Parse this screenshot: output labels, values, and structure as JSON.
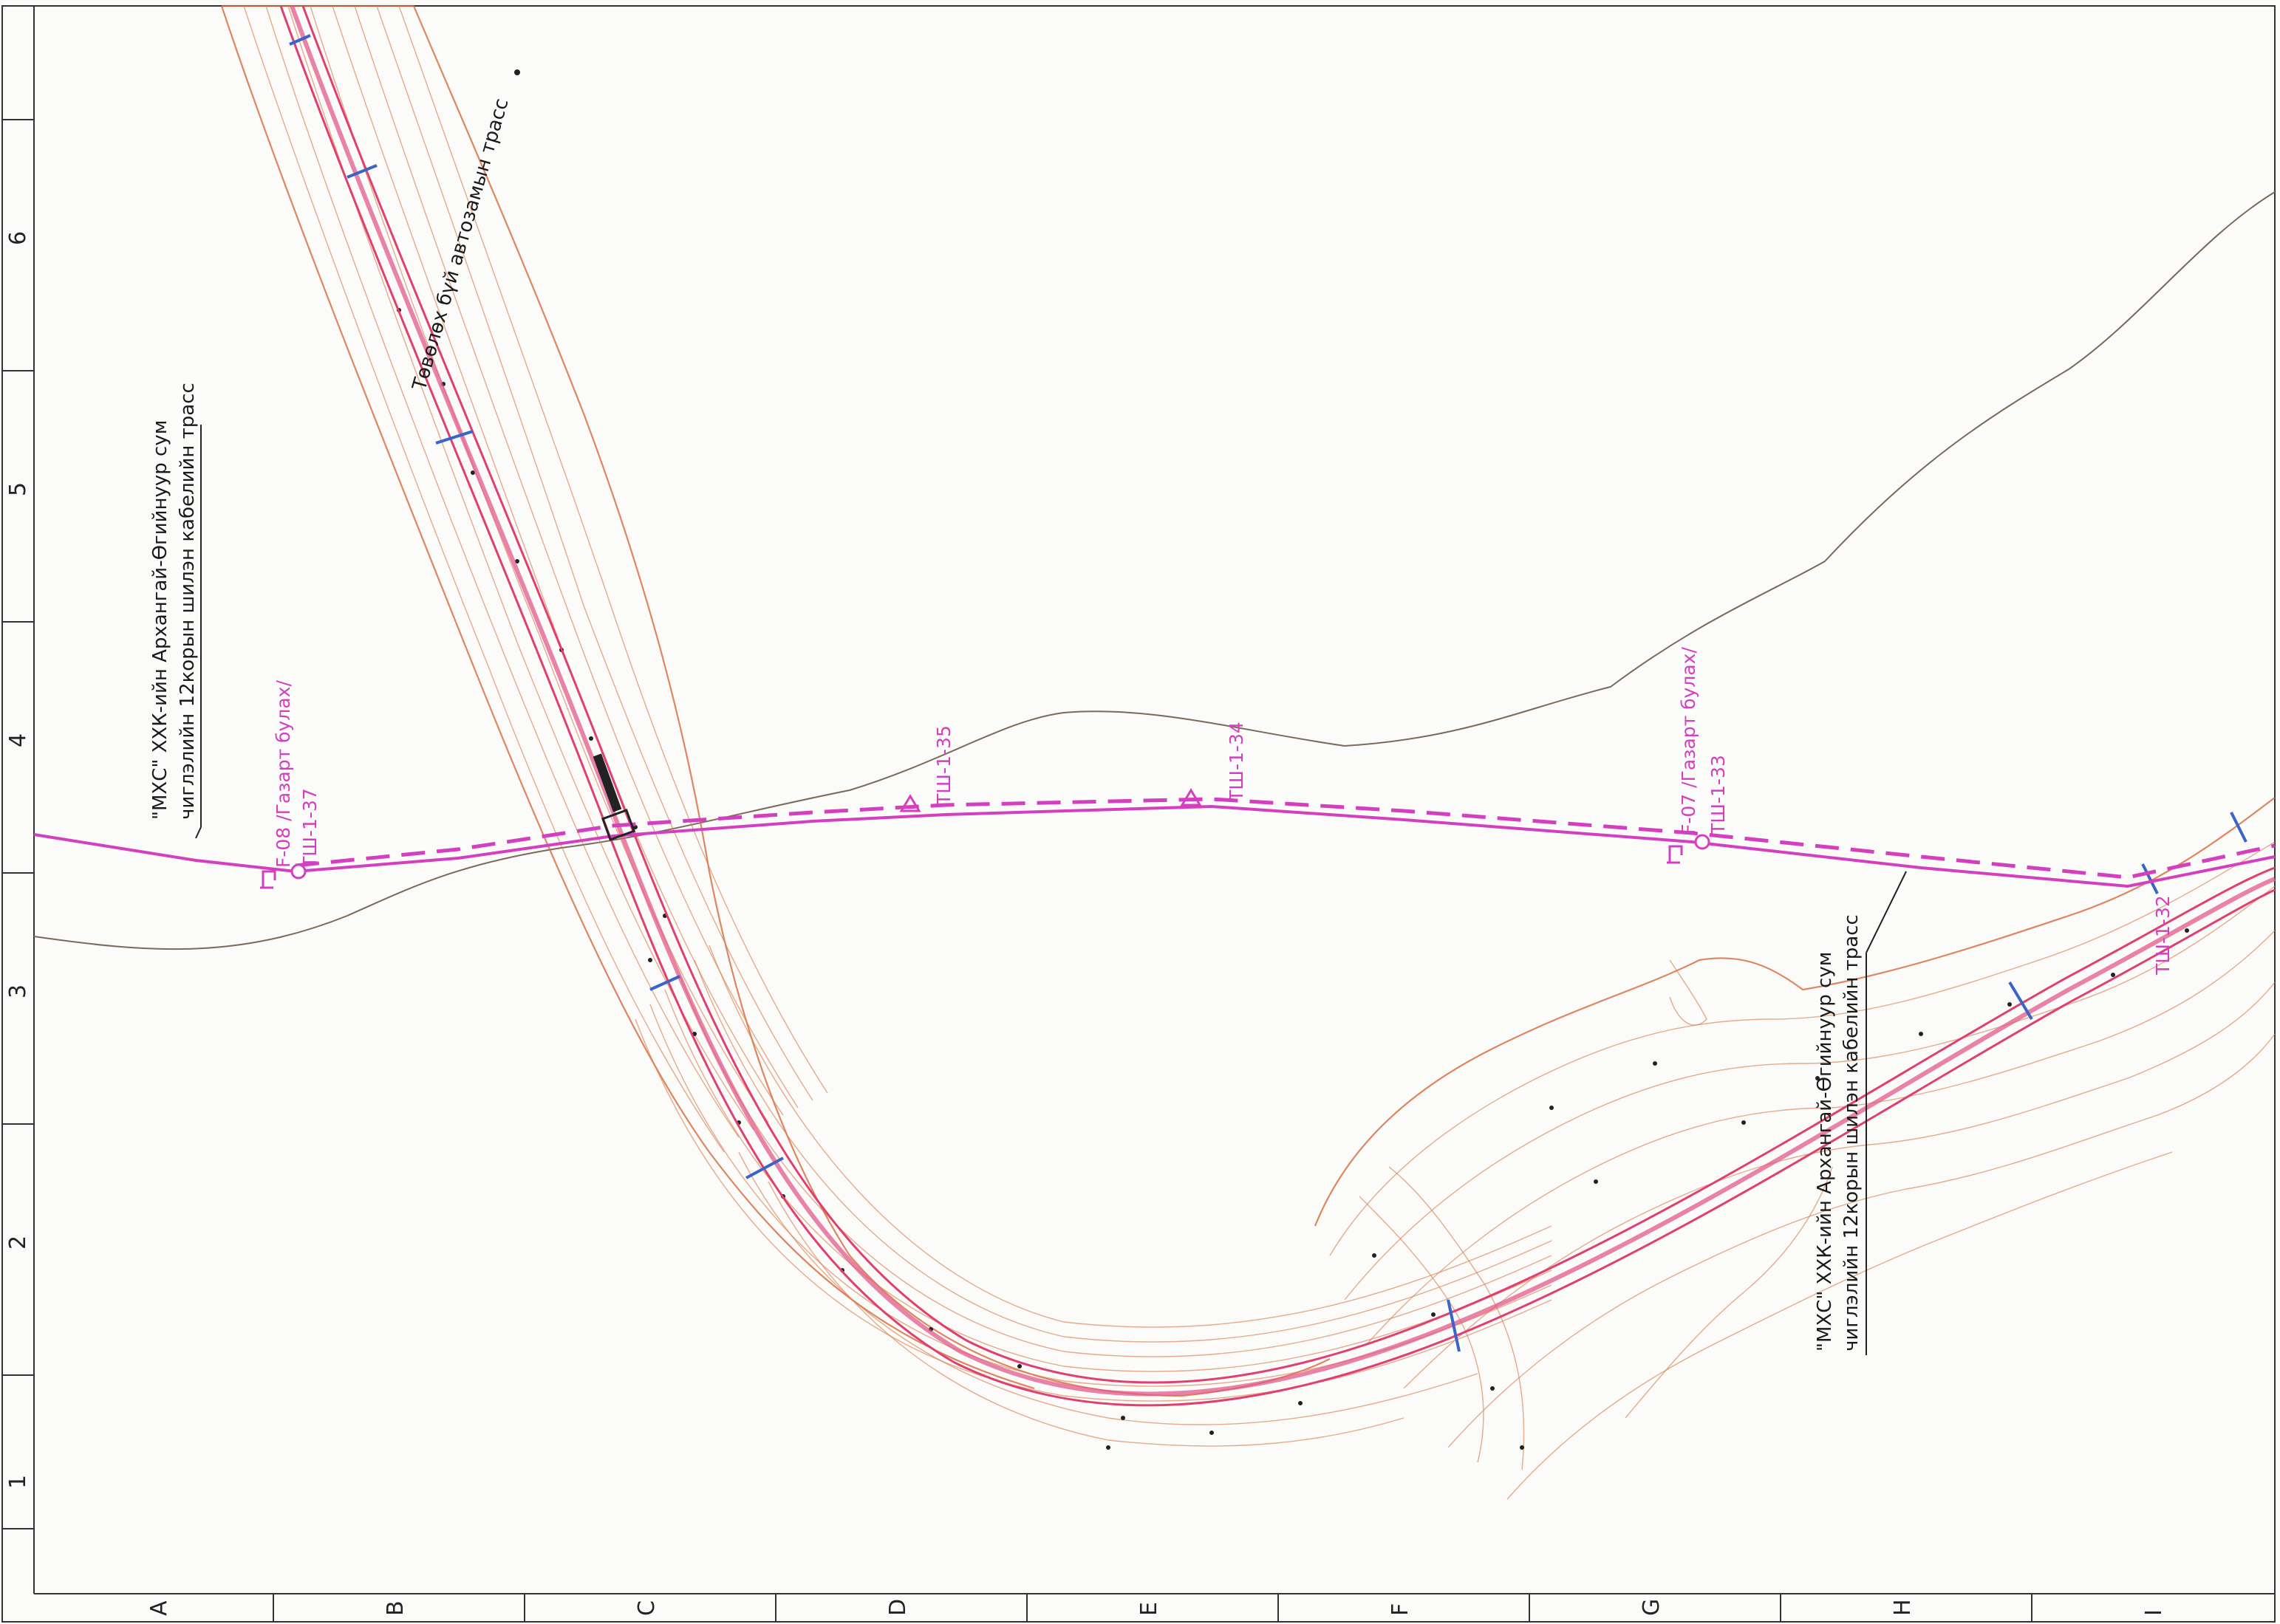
{
  "map": {
    "frame_columns": [
      "A",
      "B",
      "C",
      "D",
      "E",
      "F",
      "G",
      "H",
      "I"
    ],
    "frame_rows": [
      "1",
      "2",
      "3",
      "4",
      "5",
      "6"
    ],
    "road_label": "Төвөлөх бүй автозамын трасс",
    "cable_label_top": {
      "line1": "\"МХС\" ХХК-ийн Архангай-Өгийнуур сум",
      "line2": "чиглэлийн 12корын шилэн кабелийн трасс"
    },
    "cable_label_bottom": {
      "line1": "\"МХС\" ХХК-ийн Архангай-Өгийнуур сум",
      "line2": "чиглэлийн 12корын шилэн кабелийн трасс"
    },
    "points": [
      {
        "code": "F-08 /Газарт булах/",
        "id": "ТШ-1-37"
      },
      {
        "code": "",
        "id": "ТШ-1-35"
      },
      {
        "code": "",
        "id": "ТШ-1-34"
      },
      {
        "code": "F-07 /Газарт булах/",
        "id": "ТШ-1-33"
      },
      {
        "code": "",
        "id": "ТШ-1-32"
      }
    ],
    "colors": {
      "cable": "#d43fc0",
      "road": "#e04070",
      "contours": "#d46a3a",
      "terrain_line": "#7a6a5a",
      "markers": "#3a64c8"
    }
  }
}
